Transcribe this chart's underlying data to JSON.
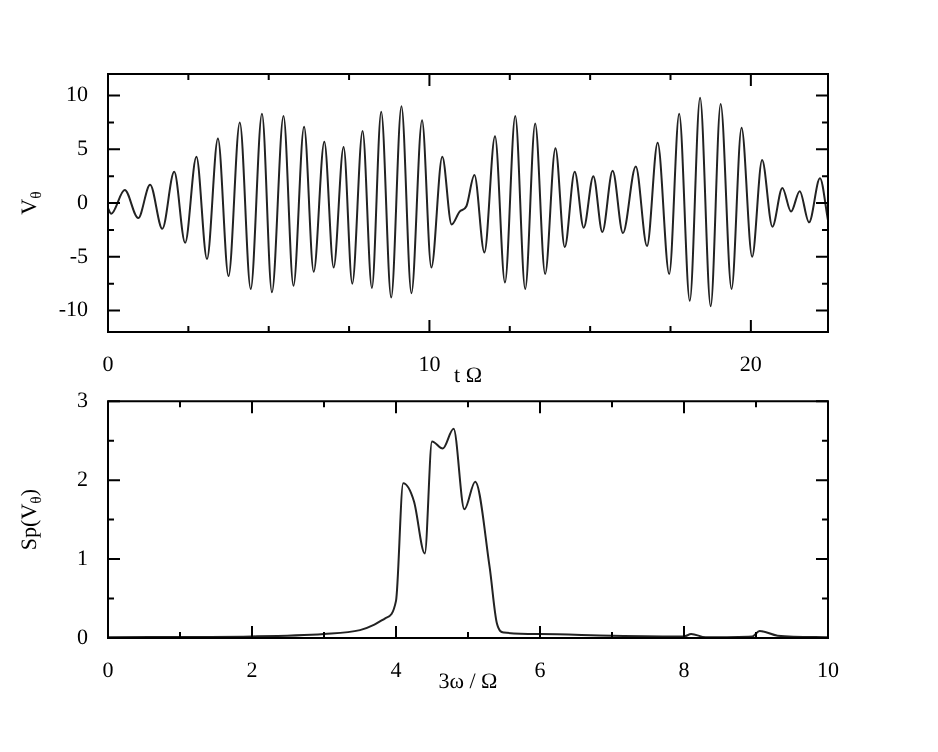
{
  "chart_data": [
    {
      "type": "line",
      "xlabel": "t Ω",
      "ylabel": "V$_{θ}$",
      "color": "#222222",
      "x": [
        0,
        0.1,
        0.52,
        0.94,
        1.31,
        1.69,
        2.06,
        2.4,
        2.75,
        3.08,
        3.42,
        3.75,
        4.1,
        4.44,
        4.79,
        5.1,
        5.46,
        5.77,
        6.1,
        6.4,
        6.73,
        7.02,
        7.33,
        7.6,
        7.92,
        8.21,
        8.5,
        8.81,
        9.13,
        9.44,
        9.77,
        10.06,
        10.4,
        10.69,
        10.94,
        11.15,
        11.4,
        11.71,
        12.04,
        12.35,
        12.67,
        12.98,
        13.29,
        13.6,
        13.92,
        14.21,
        14.52,
        14.8,
        15.1,
        15.38,
        15.7,
        16.02,
        16.42,
        16.77,
        17.1,
        17.46,
        17.77,
        18.1,
        18.42,
        18.75,
        19.06,
        19.4,
        19.71,
        20.04,
        20.35,
        20.67,
        20.98,
        21.25,
        21.52,
        21.81,
        22.15,
        22.4
      ],
      "values": [
        -0.5,
        -1.0,
        1.2,
        -1.4,
        1.7,
        -2.4,
        2.9,
        -3.7,
        4.3,
        -5.2,
        6.0,
        -6.8,
        7.5,
        -8.0,
        8.3,
        -8.3,
        8.1,
        -7.7,
        7.1,
        -6.4,
        5.7,
        -6.0,
        5.2,
        -7.5,
        6.7,
        -7.9,
        8.5,
        -8.8,
        9.0,
        -8.4,
        7.7,
        -6.0,
        4.3,
        -2.0,
        -0.8,
        -0.3,
        2.6,
        -4.6,
        6.2,
        -7.4,
        8.1,
        -8.0,
        7.4,
        -6.6,
        5.1,
        -4.1,
        2.9,
        -2.3,
        2.5,
        -2.7,
        3.0,
        -2.8,
        3.4,
        -4.0,
        5.6,
        -6.6,
        8.3,
        -9.1,
        9.8,
        -9.6,
        9.2,
        -8.0,
        7.0,
        -5.0,
        4.0,
        -2.2,
        1.4,
        -0.8,
        1.1,
        -1.8,
        2.3,
        -1.6
      ],
      "xlim": [
        0,
        22.4
      ],
      "xticks": [
        0,
        {
          "value": 2.5,
          "label": null
        },
        {
          "value": 5,
          "label": null
        },
        {
          "value": 7.5,
          "label": null
        },
        10,
        {
          "value": 12.5,
          "label": null
        },
        {
          "value": 15,
          "label": null
        },
        {
          "value": 17.5,
          "label": null
        },
        20
      ],
      "ylim": [
        -12,
        12
      ],
      "yticks": [
        -10,
        {
          "value": -7.5,
          "label": null
        },
        -5,
        {
          "value": -2.5,
          "label": null
        },
        0,
        {
          "value": 2.5,
          "label": null
        },
        5,
        {
          "value": 7.5,
          "label": null
        },
        10
      ]
    },
    {
      "type": "line",
      "xlabel": "3ω / Ω",
      "ylabel": "Sp(V$_{θ}$)",
      "color": "#222222",
      "x": [
        0,
        2,
        3,
        3.5,
        3.7,
        3.85,
        4.0,
        4.1,
        4.25,
        4.4,
        4.5,
        4.65,
        4.8,
        4.95,
        5.1,
        5.3,
        5.4,
        5.5,
        6,
        7,
        8,
        8.1,
        8.3,
        8.95,
        9.05,
        9.3,
        10
      ],
      "values": [
        0.01,
        0.02,
        0.05,
        0.1,
        0.17,
        0.25,
        0.47,
        1.96,
        1.73,
        1.07,
        2.49,
        2.4,
        2.65,
        1.63,
        1.98,
        0.9,
        0.19,
        0.07,
        0.05,
        0.03,
        0.02,
        0.05,
        0.01,
        0.02,
        0.09,
        0.03,
        0.01
      ],
      "xlim": [
        0,
        10
      ],
      "xticks": [
        0,
        {
          "value": 1,
          "label": null
        },
        2,
        {
          "value": 3,
          "label": null
        },
        4,
        {
          "value": 5,
          "label": null
        },
        6,
        {
          "value": 7,
          "label": null
        },
        8,
        {
          "value": 9,
          "label": null
        },
        10
      ],
      "ylim": [
        0,
        3
      ],
      "yticks": [
        0,
        {
          "value": 0.5,
          "label": null
        },
        1,
        {
          "value": 1.5,
          "label": null
        },
        2,
        {
          "value": 2.5,
          "label": null
        },
        3
      ]
    }
  ]
}
